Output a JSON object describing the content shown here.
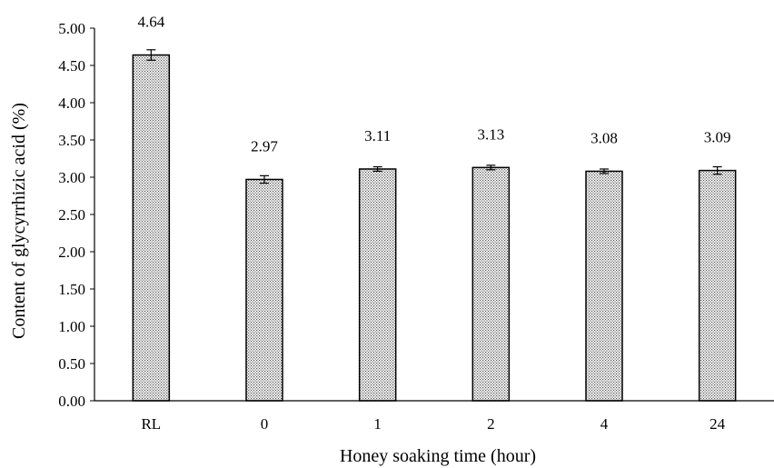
{
  "chart_data": {
    "type": "bar",
    "categories": [
      "RL",
      "0",
      "1",
      "2",
      "4",
      "24"
    ],
    "values": [
      4.64,
      2.97,
      3.11,
      3.13,
      3.08,
      3.09
    ],
    "value_labels": [
      "4.64",
      "2.97",
      "3.11",
      "3.13",
      "3.08",
      "3.09"
    ],
    "error": [
      0.07,
      0.05,
      0.03,
      0.03,
      0.03,
      0.05
    ],
    "xlabel": "Honey soaking time (hour)",
    "ylabel": "Content of glycyrrhizic  acid (%)",
    "ylim": [
      0,
      5
    ],
    "yticks": [
      "0.00",
      "0.50",
      "1.00",
      "1.50",
      "2.00",
      "2.50",
      "3.00",
      "3.50",
      "4.00",
      "4.50",
      "5.00"
    ],
    "grid": false,
    "bar_fill": "dotted pattern",
    "colors": {
      "bar_border": "#000000",
      "bar_dots": "#555555",
      "axis": "#000000"
    }
  }
}
